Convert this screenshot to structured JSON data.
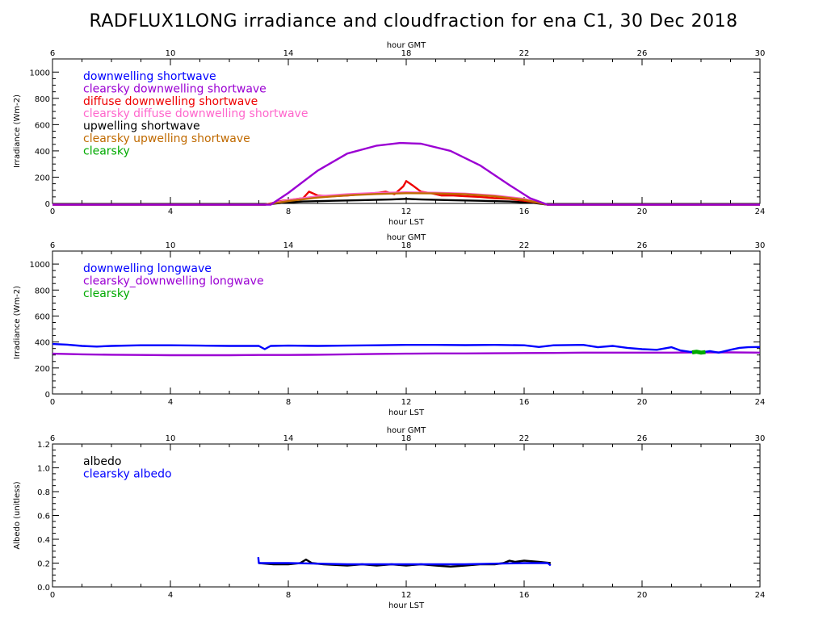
{
  "title": "RADFLUX1LONG irradiance and cloudfraction for ena C1, 30 Dec 2018",
  "chart_data": [
    {
      "type": "line",
      "ylabel": "Irradiance (Wm-2)",
      "xlabel": "hour LST",
      "top_label": "hour GMT",
      "xlim": [
        0,
        24
      ],
      "ylim": [
        0,
        1100
      ],
      "xticks": [
        "0",
        "4",
        "8",
        "12",
        "16",
        "20",
        "24"
      ],
      "top_ticks": [
        "6",
        "10",
        "14",
        "18",
        "22",
        "26",
        "30"
      ],
      "yticks": [
        "0",
        "200",
        "400",
        "600",
        "800",
        "1000"
      ],
      "legend": [
        {
          "label": "downwelling shortwave",
          "color": "#0000ff"
        },
        {
          "label": "clearsky downwelling shortwave",
          "color": "#9b00d3"
        },
        {
          "label": "diffuse downwelling shortwave",
          "color": "#ee0000"
        },
        {
          "label": "clearsky diffuse downwelling shortwave",
          "color": "#ff66cc"
        },
        {
          "label": "upwelling shortwave",
          "color": "#000000"
        },
        {
          "label": "clearsky upwelling shortwave",
          "color": "#c06a00"
        },
        {
          "label": "clearsky",
          "color": "#00aa00"
        }
      ],
      "series": [
        {
          "key": "black",
          "color": "#000000",
          "x": [
            0,
            7.2,
            7.8,
            8.5,
            9.5,
            10.5,
            11.5,
            12.0,
            12.5,
            13.5,
            14.5,
            15.5,
            16.3,
            16.8,
            24
          ],
          "y": [
            -10,
            -10,
            5,
            15,
            20,
            25,
            30,
            35,
            30,
            25,
            20,
            15,
            5,
            -10,
            -10
          ]
        },
        {
          "key": "red",
          "color": "#ee0000",
          "x": [
            0,
            7.2,
            7.8,
            8.5,
            8.7,
            9.0,
            9.5,
            10.0,
            10.5,
            11.0,
            11.3,
            11.6,
            11.9,
            12.0,
            12.2,
            12.5,
            12.8,
            13.2,
            13.6,
            14.0,
            14.5,
            15.0,
            15.5,
            16.0,
            16.5,
            16.8,
            24
          ],
          "y": [
            -10,
            -10,
            20,
            40,
            90,
            60,
            55,
            60,
            70,
            80,
            90,
            70,
            130,
            170,
            140,
            90,
            80,
            60,
            60,
            55,
            50,
            40,
            35,
            20,
            5,
            -10,
            -10
          ]
        },
        {
          "key": "pink",
          "color": "#ff66cc",
          "x": [
            0,
            7.2,
            8.0,
            9.0,
            10.0,
            11.0,
            12.0,
            13.0,
            14.0,
            15.0,
            16.0,
            16.8,
            24
          ],
          "y": [
            -10,
            -10,
            25,
            55,
            70,
            80,
            85,
            82,
            75,
            60,
            35,
            -10,
            -10
          ]
        },
        {
          "key": "orange",
          "color": "#c06a00",
          "x": [
            0,
            7.2,
            8.0,
            9.0,
            10.0,
            11.0,
            12.0,
            13.0,
            14.0,
            15.0,
            16.0,
            16.8,
            24
          ],
          "y": [
            -10,
            -10,
            18,
            45,
            62,
            72,
            78,
            76,
            70,
            55,
            28,
            -10,
            -10
          ]
        },
        {
          "key": "purple",
          "color": "#9b00d3",
          "x": [
            0,
            7.4,
            8.0,
            9.0,
            10.0,
            11.0,
            11.8,
            12.5,
            13.5,
            14.5,
            15.5,
            16.2,
            16.8,
            24
          ],
          "y": [
            -10,
            -10,
            80,
            250,
            380,
            440,
            460,
            455,
            400,
            290,
            140,
            40,
            -10,
            -10
          ]
        }
      ]
    },
    {
      "type": "line",
      "ylabel": "Irradiance (Wm-2)",
      "xlabel": "hour LST",
      "top_label": "hour GMT",
      "xlim": [
        0,
        24
      ],
      "ylim": [
        0,
        1100
      ],
      "xticks": [
        "0",
        "4",
        "8",
        "12",
        "16",
        "20",
        "24"
      ],
      "top_ticks": [
        "6",
        "10",
        "14",
        "18",
        "22",
        "26",
        "30"
      ],
      "yticks": [
        "0",
        "200",
        "400",
        "600",
        "800",
        "1000"
      ],
      "legend": [
        {
          "label": "downwelling longwave",
          "color": "#0000ff"
        },
        {
          "label": "clearsky_downwelling longwave",
          "color": "#9b00d3"
        },
        {
          "label": "clearsky",
          "color": "#00aa00"
        }
      ],
      "series": [
        {
          "key": "purple",
          "color": "#9b00d3",
          "x": [
            0,
            1,
            2,
            3,
            4,
            5,
            6,
            7,
            8,
            9,
            10,
            11,
            12,
            13,
            14,
            15,
            16,
            17,
            18,
            19,
            20,
            21,
            22,
            23,
            24
          ],
          "y": [
            310,
            305,
            302,
            300,
            298,
            298,
            298,
            300,
            300,
            302,
            305,
            308,
            310,
            312,
            312,
            313,
            315,
            316,
            318,
            318,
            318,
            318,
            320,
            320,
            318
          ]
        },
        {
          "key": "blue",
          "color": "#0000ff",
          "x": [
            0,
            0.5,
            1.0,
            1.5,
            2.0,
            3.0,
            4.0,
            5.0,
            6.0,
            7.0,
            7.2,
            7.4,
            8.0,
            9.0,
            10.0,
            11.0,
            12.0,
            13.0,
            14.0,
            15.0,
            16.0,
            16.5,
            17.0,
            18.0,
            18.5,
            19.0,
            19.5,
            20.0,
            20.5,
            21.0,
            21.3,
            21.6,
            22.0,
            22.3,
            22.6,
            23.0,
            23.3,
            23.6,
            24
          ],
          "y": [
            385,
            380,
            370,
            365,
            370,
            375,
            375,
            372,
            370,
            370,
            345,
            370,
            372,
            370,
            372,
            375,
            378,
            378,
            376,
            378,
            375,
            362,
            375,
            378,
            360,
            370,
            355,
            345,
            340,
            360,
            335,
            325,
            320,
            330,
            318,
            340,
            355,
            360,
            362
          ]
        },
        {
          "key": "green",
          "color": "#00aa00",
          "x": [
            21.7,
            21.85,
            22.0,
            22.15
          ],
          "y": [
            320,
            325,
            318,
            322
          ]
        }
      ]
    },
    {
      "type": "line",
      "ylabel": "Albedo (unitless)",
      "xlabel": "hour LST",
      "top_label": "hour GMT",
      "xlim": [
        0,
        24
      ],
      "ylim": [
        0,
        1.2
      ],
      "xticks": [
        "0",
        "4",
        "8",
        "12",
        "16",
        "20",
        "24"
      ],
      "top_ticks": [
        "6",
        "10",
        "14",
        "18",
        "22",
        "26",
        "30"
      ],
      "yticks": [
        "0.0",
        "0.2",
        "0.4",
        "0.6",
        "0.8",
        "1.0",
        "1.2"
      ],
      "legend": [
        {
          "label": "albedo",
          "color": "#000000"
        },
        {
          "label": "clearsky albedo",
          "color": "#0000ff"
        }
      ],
      "series": [
        {
          "key": "black",
          "color": "#000000",
          "x": [
            7.0,
            7.5,
            8.0,
            8.4,
            8.6,
            8.8,
            9.2,
            10.0,
            10.5,
            11.0,
            11.5,
            12.0,
            12.5,
            13.0,
            13.5,
            14.0,
            14.5,
            15.0,
            15.3,
            15.5,
            15.7,
            16.0,
            16.5,
            16.9
          ],
          "y": [
            0.2,
            0.19,
            0.19,
            0.2,
            0.23,
            0.2,
            0.19,
            0.18,
            0.19,
            0.18,
            0.19,
            0.18,
            0.19,
            0.18,
            0.17,
            0.18,
            0.19,
            0.19,
            0.2,
            0.22,
            0.21,
            0.22,
            0.21,
            0.2
          ]
        },
        {
          "key": "blue",
          "color": "#0000ff",
          "x": [
            6.98,
            7.0,
            7.2,
            8.0,
            9.0,
            10.0,
            11.0,
            12.0,
            13.0,
            14.0,
            15.0,
            16.0,
            16.8,
            16.9
          ],
          "y": [
            0.25,
            0.2,
            0.2,
            0.2,
            0.195,
            0.19,
            0.19,
            0.19,
            0.19,
            0.19,
            0.195,
            0.2,
            0.2,
            0.18
          ]
        }
      ]
    }
  ]
}
